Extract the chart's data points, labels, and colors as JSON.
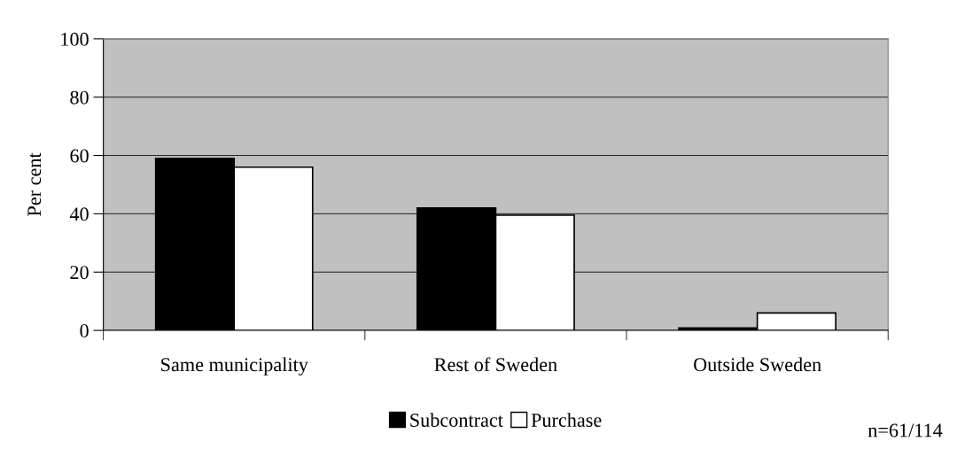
{
  "chart_data": {
    "type": "bar",
    "ylabel": "Per cent",
    "categories": [
      "Same municipality",
      "Rest of Sweden",
      "Outside Sweden"
    ],
    "series": [
      {
        "name": "Subcontract",
        "color": "#000000",
        "values": [
          59,
          42,
          0.8
        ]
      },
      {
        "name": "Purchase",
        "color": "#ffffff",
        "values": [
          56,
          39.5,
          6
        ]
      }
    ],
    "ylim": [
      0,
      100
    ],
    "yticks": [
      0,
      20,
      40,
      60,
      80,
      100
    ],
    "grid": "y",
    "legend": "bottom",
    "annotations": [
      "n=61/114"
    ]
  }
}
